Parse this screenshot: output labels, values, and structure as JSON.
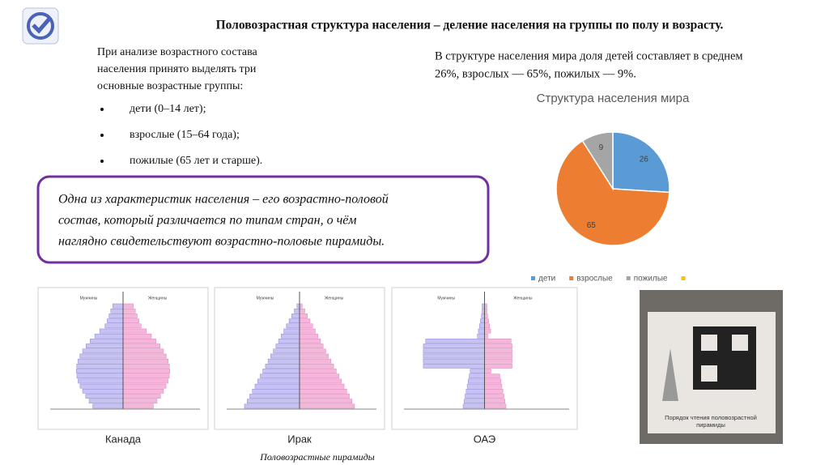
{
  "header": {
    "title": "Половозрастная структура населения – деление населения на группы по полу и возрасту."
  },
  "intro": {
    "lines": [
      "При анализе возрастного состава",
      "населения принято выделять три",
      "основные возрастные группы:"
    ],
    "bullets": [
      "дети (0–14 лет);",
      "взрослые (15–64 года);",
      "пожилые (65 лет и старше)."
    ]
  },
  "summary": {
    "lines": [
      "В структуре населения мира доля детей составляет в среднем",
      "26%, взрослых — 65%, пожилых — 9%."
    ]
  },
  "callout": {
    "lines": [
      "Одна из характеристик населения – его возрастно-половой",
      "состав, который различается по типам стран, о чём",
      "наглядно свидетельствуют возрастно-половые пирамиды."
    ]
  },
  "chart_data": {
    "type": "pie",
    "title": "Структура населения мира",
    "categories": [
      "дети",
      "взрослые",
      "пожилые",
      null
    ],
    "values": [
      26,
      65,
      9,
      null
    ],
    "colors": [
      "#5b9bd5",
      "#ed7d31",
      "#a5a5a5",
      "#ffc000"
    ],
    "legend": "bottom"
  },
  "pyramids": {
    "items": [
      {
        "label": "Канада",
        "male": "Мужчины",
        "female": "Женщины"
      },
      {
        "label": "Ирак",
        "male": "Мужчины",
        "female": "Женщины"
      },
      {
        "label": "ОАЭ",
        "male": "Мужчины",
        "female": "Женщины"
      }
    ],
    "caption": "Половозрастные пирамиды"
  },
  "photo": {
    "lines": [
      "Порядок чтения половозрастной",
      "пирамиды"
    ]
  }
}
